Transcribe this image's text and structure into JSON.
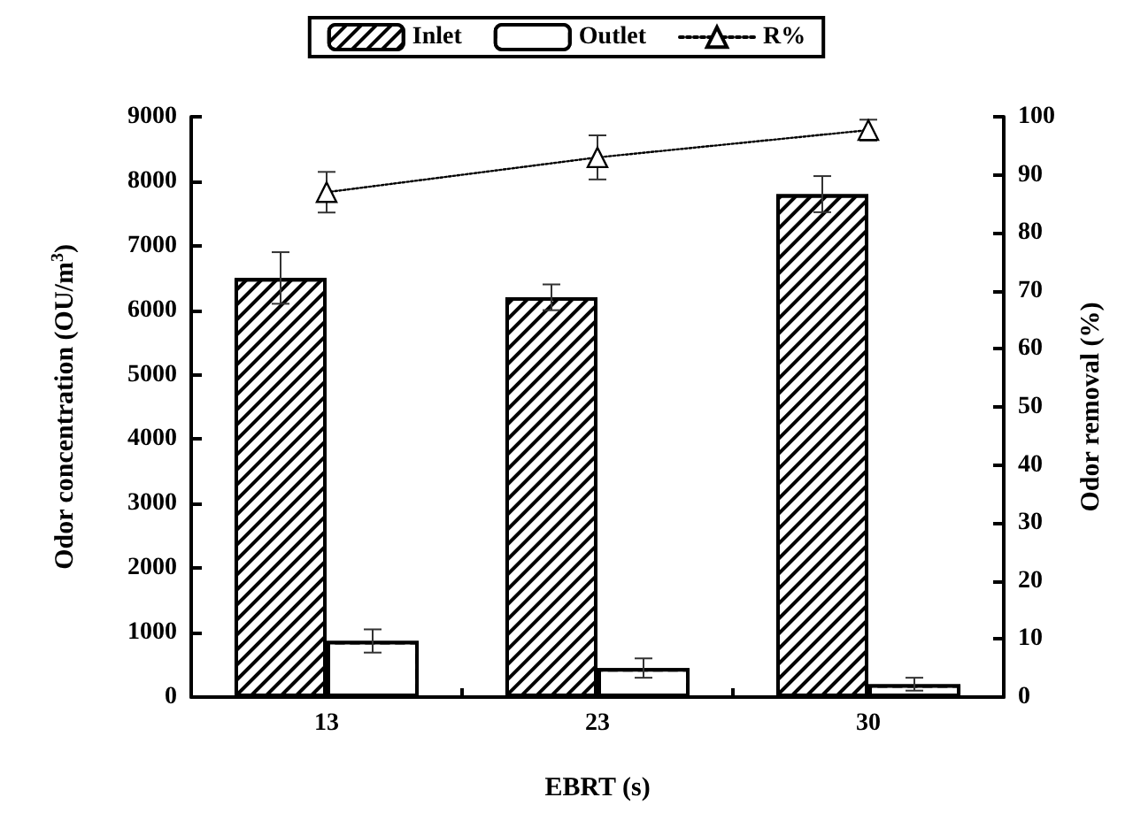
{
  "chart_data": {
    "type": "bar",
    "xlabel": "EBRT (s)",
    "ylabel": "Odor concentration (OU/m$^{3}$)",
    "y2label": "Odor removal (%)",
    "categories": [
      "13",
      "23",
      "30"
    ],
    "series": [
      {
        "name": "Inlet",
        "color": "#000000",
        "values": [
          6500,
          6200,
          7800
        ],
        "errors": [
          400,
          200,
          280
        ]
      },
      {
        "name": "Outlet",
        "color": "#ffffff",
        "values": [
          870,
          450,
          200
        ],
        "errors": [
          180,
          150,
          100
        ]
      },
      {
        "name": "R%",
        "type": "line",
        "axis": "y2",
        "color": "#000000",
        "marker": "triangle",
        "line_style": "dotted",
        "values": [
          87,
          93,
          97.7
        ],
        "errors": [
          3.5,
          3.8,
          1.8
        ]
      }
    ],
    "ylim": [
      0,
      9000
    ],
    "yticks": [
      0,
      1000,
      2000,
      3000,
      4000,
      5000,
      6000,
      7000,
      8000,
      9000
    ],
    "y2lim": [
      0,
      100
    ],
    "y2ticks": [
      0,
      10,
      20,
      30,
      40,
      50,
      60,
      70,
      80,
      90,
      100
    ],
    "grid": false,
    "legend": "top"
  }
}
